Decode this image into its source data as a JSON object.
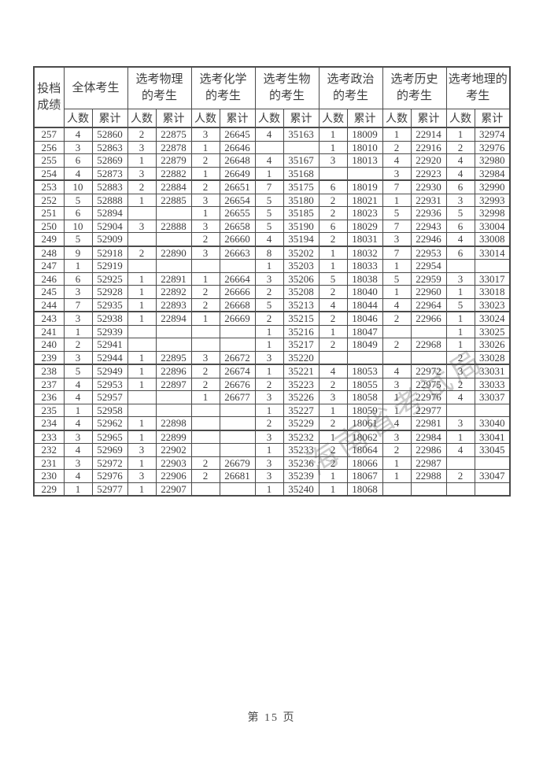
{
  "page": {
    "footer": "第 15 页",
    "watermark": "海南省考试局"
  },
  "colors": {
    "border": "#4b4b4b",
    "text": "#3d3d3d",
    "watermark_gray": "#7d7d7d"
  },
  "table": {
    "corner_header": "投档\n成绩",
    "sub_headers": [
      "人数",
      "累计"
    ],
    "groups": [
      {
        "label": "全体考生"
      },
      {
        "label": "选考物理\n的考生"
      },
      {
        "label": "选考化学\n的考生"
      },
      {
        "label": "选考生物\n的考生"
      },
      {
        "label": "选考政治\n的考生"
      },
      {
        "label": "选考历史\n的考生"
      },
      {
        "label": "选考地理的\n考生"
      }
    ],
    "rows": [
      {
        "score": "257",
        "cells": [
          "4",
          "52860",
          "2",
          "22875",
          "3",
          "26645",
          "4",
          "35163",
          "1",
          "18009",
          "1",
          "22914",
          "1",
          "32974"
        ]
      },
      {
        "score": "256",
        "cells": [
          "3",
          "52863",
          "3",
          "22878",
          "1",
          "26646",
          "",
          "",
          "1",
          "18010",
          "2",
          "22916",
          "2",
          "32976"
        ]
      },
      {
        "score": "255",
        "cells": [
          "6",
          "52869",
          "1",
          "22879",
          "2",
          "26648",
          "4",
          "35167",
          "3",
          "18013",
          "4",
          "22920",
          "4",
          "32980"
        ]
      },
      {
        "score": "254",
        "cells": [
          "4",
          "52873",
          "3",
          "22882",
          "1",
          "26649",
          "1",
          "35168",
          "",
          "",
          "3",
          "22923",
          "4",
          "32984"
        ]
      },
      {
        "score": "253",
        "cells": [
          "10",
          "52883",
          "2",
          "22884",
          "2",
          "26651",
          "7",
          "35175",
          "6",
          "18019",
          "7",
          "22930",
          "6",
          "32990"
        ]
      },
      {
        "score": "252",
        "cells": [
          "5",
          "52888",
          "1",
          "22885",
          "3",
          "26654",
          "5",
          "35180",
          "2",
          "18021",
          "1",
          "22931",
          "3",
          "32993"
        ]
      },
      {
        "score": "251",
        "cells": [
          "6",
          "52894",
          "",
          "",
          "1",
          "26655",
          "5",
          "35185",
          "2",
          "18023",
          "5",
          "22936",
          "5",
          "32998"
        ]
      },
      {
        "score": "250",
        "cells": [
          "10",
          "52904",
          "3",
          "22888",
          "3",
          "26658",
          "5",
          "35190",
          "6",
          "18029",
          "7",
          "22943",
          "6",
          "33004"
        ]
      },
      {
        "score": "249",
        "cells": [
          "5",
          "52909",
          "",
          "",
          "2",
          "26660",
          "4",
          "35194",
          "2",
          "18031",
          "3",
          "22946",
          "4",
          "33008"
        ]
      },
      {
        "score": "248",
        "cells": [
          "9",
          "52918",
          "2",
          "22890",
          "3",
          "26663",
          "8",
          "35202",
          "1",
          "18032",
          "7",
          "22953",
          "6",
          "33014"
        ]
      },
      {
        "score": "247",
        "cells": [
          "1",
          "52919",
          "",
          "",
          "",
          "",
          "1",
          "35203",
          "1",
          "18033",
          "1",
          "22954",
          "",
          ""
        ]
      },
      {
        "score": "246",
        "cells": [
          "6",
          "52925",
          "1",
          "22891",
          "1",
          "26664",
          "3",
          "35206",
          "5",
          "18038",
          "5",
          "22959",
          "3",
          "33017"
        ]
      },
      {
        "score": "245",
        "cells": [
          "3",
          "52928",
          "1",
          "22892",
          "2",
          "26666",
          "2",
          "35208",
          "2",
          "18040",
          "1",
          "22960",
          "1",
          "33018"
        ]
      },
      {
        "score": "244",
        "cells": [
          "7",
          "52935",
          "1",
          "22893",
          "2",
          "26668",
          "5",
          "35213",
          "4",
          "18044",
          "4",
          "22964",
          "5",
          "33023"
        ]
      },
      {
        "score": "243",
        "cells": [
          "3",
          "52938",
          "1",
          "22894",
          "1",
          "26669",
          "2",
          "35215",
          "2",
          "18046",
          "2",
          "22966",
          "1",
          "33024"
        ]
      },
      {
        "score": "241",
        "cells": [
          "1",
          "52939",
          "",
          "",
          "",
          "",
          "1",
          "35216",
          "1",
          "18047",
          "",
          "",
          "1",
          "33025"
        ]
      },
      {
        "score": "240",
        "cells": [
          "2",
          "52941",
          "",
          "",
          "",
          "",
          "1",
          "35217",
          "2",
          "18049",
          "2",
          "22968",
          "1",
          "33026"
        ]
      },
      {
        "score": "239",
        "cells": [
          "3",
          "52944",
          "1",
          "22895",
          "3",
          "26672",
          "3",
          "35220",
          "",
          "",
          "",
          "",
          "2",
          "33028"
        ]
      },
      {
        "score": "238",
        "cells": [
          "5",
          "52949",
          "1",
          "22896",
          "2",
          "26674",
          "1",
          "35221",
          "4",
          "18053",
          "4",
          "22972",
          "3",
          "33031"
        ]
      },
      {
        "score": "237",
        "cells": [
          "4",
          "52953",
          "1",
          "22897",
          "2",
          "26676",
          "2",
          "35223",
          "2",
          "18055",
          "3",
          "22975",
          "2",
          "33033"
        ]
      },
      {
        "score": "236",
        "cells": [
          "4",
          "52957",
          "",
          "",
          "1",
          "26677",
          "3",
          "35226",
          "3",
          "18058",
          "1",
          "22976",
          "4",
          "33037"
        ]
      },
      {
        "score": "235",
        "cells": [
          "1",
          "52958",
          "",
          "",
          "",
          "",
          "1",
          "35227",
          "1",
          "18059",
          "1",
          "22977",
          "",
          ""
        ]
      },
      {
        "score": "234",
        "cells": [
          "4",
          "52962",
          "1",
          "22898",
          "",
          "",
          "2",
          "35229",
          "2",
          "18061",
          "4",
          "22981",
          "3",
          "33040"
        ]
      },
      {
        "score": "233",
        "cells": [
          "3",
          "52965",
          "1",
          "22899",
          "",
          "",
          "3",
          "35232",
          "1",
          "18062",
          "3",
          "22984",
          "1",
          "33041"
        ]
      },
      {
        "score": "232",
        "cells": [
          "4",
          "52969",
          "3",
          "22902",
          "",
          "",
          "1",
          "35233",
          "2",
          "18064",
          "2",
          "22986",
          "4",
          "33045"
        ]
      },
      {
        "score": "231",
        "cells": [
          "3",
          "52972",
          "1",
          "22903",
          "2",
          "26679",
          "3",
          "35236",
          "2",
          "18066",
          "1",
          "22987",
          "",
          ""
        ]
      },
      {
        "score": "230",
        "cells": [
          "4",
          "52976",
          "3",
          "22906",
          "2",
          "26681",
          "3",
          "35239",
          "1",
          "18067",
          "1",
          "22988",
          "2",
          "33047"
        ]
      },
      {
        "score": "229",
        "cells": [
          "1",
          "52977",
          "1",
          "22907",
          "",
          "",
          "1",
          "35240",
          "1",
          "18068",
          "",
          "",
          "",
          " "
        ]
      }
    ],
    "layout": {
      "score_col_width": 38,
      "count_col_width": 36,
      "cum_col_width": 45,
      "thick_border_below_scores": [
        254,
        249,
        244,
        239,
        234
      ]
    }
  }
}
